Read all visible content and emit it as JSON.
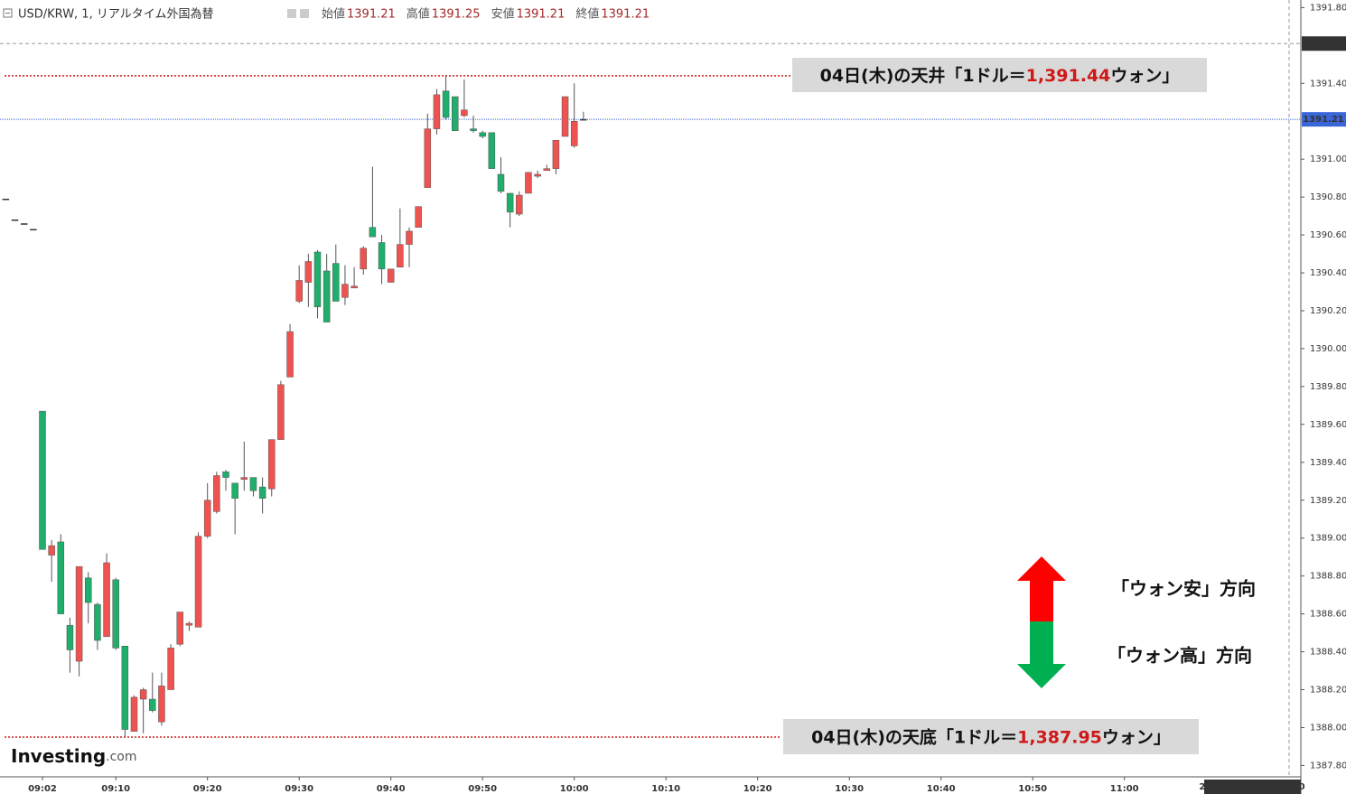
{
  "header": {
    "title": "USD/KRW, 1, リアルタイム外国為替",
    "fields": [
      "始値",
      "高値",
      "安値",
      "終値"
    ]
  },
  "chart_data": {
    "type": "candlestick",
    "x": [
      -2,
      -1,
      0,
      1,
      2,
      3,
      4,
      5,
      6,
      7,
      8,
      9,
      10,
      11,
      12,
      13,
      14,
      15,
      16,
      17,
      18,
      19,
      20,
      21,
      22,
      23,
      24,
      25,
      26,
      27,
      28,
      29,
      30,
      31,
      32,
      33,
      34,
      35,
      36,
      37,
      38,
      39,
      40,
      41,
      42,
      43,
      44,
      45,
      46,
      47,
      48,
      49,
      50,
      51,
      52,
      53,
      54,
      55,
      56,
      57,
      58,
      59,
      60,
      61
    ],
    "open": [
      1390.79,
      1390.68,
      1390.66,
      1390.63,
      1389.67,
      1388.91,
      1388.98,
      1388.54,
      1388.35,
      1388.79,
      1388.65,
      1388.48,
      1388.78,
      1388.43,
      1387.98,
      1388.15,
      1388.15,
      1388.03,
      1388.2,
      1388.44,
      1388.54,
      1388.53,
      1389.01,
      1389.14,
      1389.35,
      1389.29,
      1389.31,
      1389.32,
      1389.27,
      1389.26,
      1389.52,
      1389.85,
      1390.25,
      1390.35,
      1390.51,
      1390.41,
      1390.45,
      1390.27,
      1390.32,
      1390.42,
      1390.64,
      1390.56,
      1390.35,
      1390.43,
      1390.55,
      1390.64,
      1390.85,
      1391.16,
      1391.36,
      1391.33,
      1391.23,
      1391.16,
      1391.14,
      1391.14,
      1390.92,
      1390.82,
      1390.71,
      1390.82,
      1390.91,
      1390.94,
      1390.95,
      1391.12,
      1391.07,
      1391.21
    ],
    "high": [
      1390.79,
      1390.68,
      1390.66,
      1390.63,
      1389.67,
      1388.99,
      1389.02,
      1388.58,
      1388.85,
      1388.82,
      1388.66,
      1388.92,
      1388.79,
      1388.43,
      1388.17,
      1388.21,
      1388.29,
      1388.29,
      1388.44,
      1388.61,
      1388.56,
      1389.03,
      1389.29,
      1389.35,
      1389.36,
      1389.29,
      1389.51,
      1389.32,
      1389.32,
      1389.52,
      1389.83,
      1390.13,
      1390.44,
      1390.5,
      1390.52,
      1390.5,
      1390.55,
      1390.44,
      1390.43,
      1390.54,
      1390.96,
      1390.6,
      1390.42,
      1390.74,
      1390.64,
      1390.75,
      1391.24,
      1391.37,
      1391.44,
      1391.33,
      1391.42,
      1391.23,
      1391.15,
      1391.14,
      1391.01,
      1390.82,
      1390.83,
      1390.93,
      1390.94,
      1390.97,
      1391.1,
      1391.33,
      1391.4,
      1391.25
    ],
    "low": [
      1390.79,
      1390.68,
      1390.66,
      1390.63,
      1388.94,
      1388.77,
      1388.6,
      1388.29,
      1388.27,
      1388.55,
      1388.41,
      1388.48,
      1388.41,
      1387.95,
      1387.98,
      1387.97,
      1388.08,
      1388.01,
      1388.2,
      1388.43,
      1388.51,
      1388.53,
      1389.0,
      1389.13,
      1389.25,
      1389.02,
      1389.25,
      1389.22,
      1389.13,
      1389.22,
      1389.52,
      1389.85,
      1390.24,
      1390.22,
      1390.16,
      1390.14,
      1390.25,
      1390.23,
      1390.32,
      1390.39,
      1390.59,
      1390.34,
      1390.35,
      1390.43,
      1390.43,
      1390.64,
      1390.85,
      1391.13,
      1391.21,
      1391.15,
      1391.22,
      1391.14,
      1391.11,
      1390.95,
      1390.82,
      1390.64,
      1390.7,
      1390.82,
      1390.9,
      1390.94,
      1390.92,
      1391.12,
      1391.06,
      1391.21
    ],
    "close": [
      1390.79,
      1390.68,
      1390.66,
      1390.63,
      1388.94,
      1388.96,
      1388.6,
      1388.41,
      1388.85,
      1388.66,
      1388.46,
      1388.87,
      1388.42,
      1387.99,
      1388.16,
      1388.2,
      1388.09,
      1388.22,
      1388.42,
      1388.61,
      1388.55,
      1389.01,
      1389.2,
      1389.33,
      1389.32,
      1389.21,
      1389.32,
      1389.25,
      1389.21,
      1389.52,
      1389.81,
      1390.09,
      1390.36,
      1390.46,
      1390.22,
      1390.14,
      1390.25,
      1390.34,
      1390.33,
      1390.53,
      1390.59,
      1390.42,
      1390.42,
      1390.55,
      1390.62,
      1390.75,
      1391.16,
      1391.34,
      1391.22,
      1391.15,
      1391.26,
      1391.15,
      1391.12,
      1390.95,
      1390.83,
      1390.72,
      1390.81,
      1390.93,
      1390.92,
      1390.95,
      1391.1,
      1391.33,
      1391.2,
      1391.21
    ],
    "up_color": "#ef5350",
    "down_color": "#1fae6b",
    "flat_color": "#333333",
    "xlim": [
      -2.63,
      139.24
    ],
    "xticks": [
      {
        "value": 2,
        "label": "09:02"
      },
      {
        "value": 10,
        "label": "09:10"
      },
      {
        "value": 20,
        "label": "09:20"
      },
      {
        "value": 30,
        "label": "09:30"
      },
      {
        "value": 40,
        "label": "09:40"
      },
      {
        "value": 50,
        "label": "09:50"
      },
      {
        "value": 60,
        "label": "10:00"
      },
      {
        "value": 70,
        "label": "10:10"
      },
      {
        "value": 80,
        "label": "10:20"
      },
      {
        "value": 90,
        "label": "10:30"
      },
      {
        "value": 100,
        "label": "10:40"
      },
      {
        "value": 110,
        "label": "10:50"
      },
      {
        "value": 120,
        "label": "11:00"
      }
    ],
    "ylim": [
      1387.74,
      1391.84
    ],
    "yticks": [
      {
        "value": 1387.8,
        "label": "1387.80"
      },
      {
        "value": 1388,
        "label": "1388.00"
      },
      {
        "value": 1388.2,
        "label": "1388.20"
      },
      {
        "value": 1388.4,
        "label": "1388.40"
      },
      {
        "value": 1388.6,
        "label": "1388.60"
      },
      {
        "value": 1388.8,
        "label": "1388.80"
      },
      {
        "value": 1389,
        "label": "1389.00"
      },
      {
        "value": 1389.2,
        "label": "1389.20"
      },
      {
        "value": 1389.4,
        "label": "1389.40"
      },
      {
        "value": 1389.6,
        "label": "1389.60"
      },
      {
        "value": 1389.8,
        "label": "1389.80"
      },
      {
        "value": 1390,
        "label": "1390.00"
      },
      {
        "value": 1390.2,
        "label": "1390.20"
      },
      {
        "value": 1390.4,
        "label": "1390.40"
      },
      {
        "value": 1390.6,
        "label": "1390.60"
      },
      {
        "value": 1390.8,
        "label": "1390.80"
      },
      {
        "value": 1391,
        "label": "1391.00"
      },
      {
        "value": 1391.4,
        "label": "1391.40"
      },
      {
        "value": 1391.8,
        "label": "1391.80"
      }
    ],
    "grid": false,
    "crosshair": {
      "price": 1391.61,
      "time": "2025-09-04 11:18:00"
    },
    "annotations": [
      {
        "prefix": "04日(木)の天井「1ドル＝",
        "value": 1391.44,
        "label": "1,391.44",
        "suffix": "ウォン」"
      },
      {
        "prefix": "04日(木)の天底「1ドル＝",
        "value": 1387.95,
        "label": "1,387.95",
        "suffix": "ウォン」"
      }
    ],
    "direction_notes": [
      "「ウォン安」方向",
      "「ウォン高」方向"
    ]
  },
  "logo": {
    "main": "Investing",
    "suffix": ".com"
  }
}
